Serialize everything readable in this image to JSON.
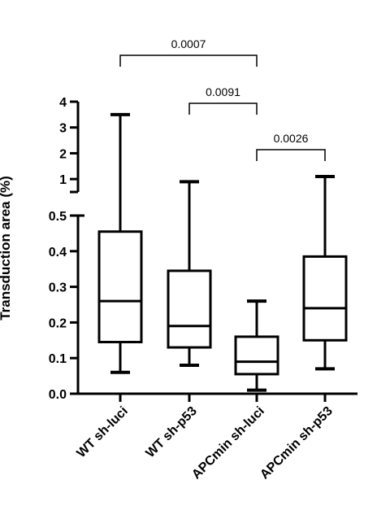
{
  "chart_data": {
    "type": "box",
    "ylabel": "Transduction area (%)",
    "categories": [
      "WT sh-luci",
      "WT sh-p53",
      "APCmin sh-luci",
      "APCmin sh-p53"
    ],
    "boxes": [
      {
        "min": 0.06,
        "q1": 0.145,
        "median": 0.26,
        "q3": 0.455,
        "max": 3.5
      },
      {
        "min": 0.08,
        "q1": 0.13,
        "median": 0.19,
        "q3": 0.345,
        "max": 0.9
      },
      {
        "min": 0.01,
        "q1": 0.055,
        "median": 0.09,
        "q3": 0.16,
        "max": 0.26
      },
      {
        "min": 0.07,
        "q1": 0.15,
        "median": 0.24,
        "q3": 0.385,
        "max": 1.1
      }
    ],
    "y_segments": [
      {
        "range": [
          0,
          0.5
        ],
        "ticks": [
          "0.0",
          "0.1",
          "0.2",
          "0.3",
          "0.4",
          "0.5"
        ]
      },
      {
        "range": [
          0.5,
          4
        ],
        "ticks": [
          "1",
          "2",
          "3",
          "4"
        ]
      }
    ],
    "comparisons": [
      {
        "groups": [
          "WT sh-luci",
          "APCmin sh-luci"
        ],
        "p": "0.0007"
      },
      {
        "groups": [
          "WT sh-p53",
          "APCmin sh-luci"
        ],
        "p": "0.0091"
      },
      {
        "groups": [
          "APCmin sh-luci",
          "APCmin sh-p53"
        ],
        "p": "0.0026"
      }
    ],
    "grid": false
  }
}
